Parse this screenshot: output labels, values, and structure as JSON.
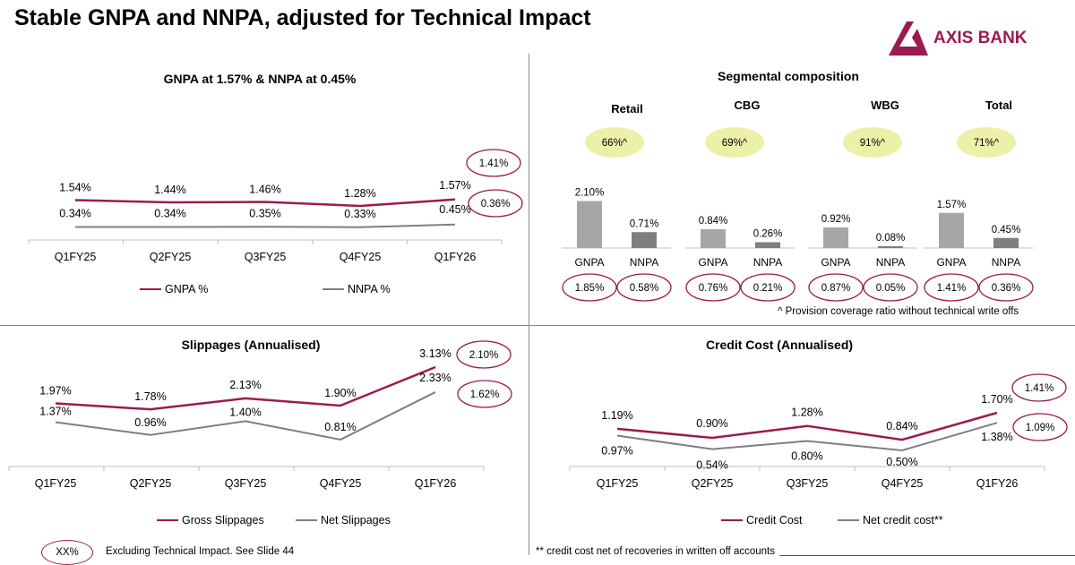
{
  "slide": {
    "title": "Stable GNPA and NNPA, adjusted for Technical Impact",
    "brand": "AXIS BANK"
  },
  "colors": {
    "primary": "#9b1b4e",
    "secondary": "#7f7f7f",
    "bar": "#a6a6a6",
    "bar_dark": "#7f7f7f",
    "pill": "#ecf0a9"
  },
  "chart_data": [
    {
      "type": "line",
      "title": "GNPA at 1.57% & NNPA at 0.45%",
      "categories": [
        "Q1FY25",
        "Q2FY25",
        "Q3FY25",
        "Q4FY25",
        "Q1FY26"
      ],
      "series": [
        {
          "name": "GNPA %",
          "values": [
            1.54,
            1.44,
            1.46,
            1.28,
            1.57
          ],
          "labels": [
            "1.54%",
            "1.44%",
            "1.46%",
            "1.28%",
            "1.57%"
          ]
        },
        {
          "name": "NNPA %",
          "values": [
            0.34,
            0.34,
            0.35,
            0.33,
            0.45
          ],
          "labels": [
            "0.34%",
            "0.34%",
            "0.35%",
            "0.33%",
            "0.45%"
          ]
        }
      ],
      "annotations": [
        "1.41%",
        "0.36%"
      ]
    },
    {
      "type": "bar",
      "title": "Segmental composition",
      "segments": [
        {
          "name": "Retail",
          "pcr": "66%^",
          "categories": [
            "GNPA",
            "NNPA"
          ],
          "values": [
            2.1,
            0.71
          ],
          "labels": [
            "2.10%",
            "0.71%"
          ],
          "excl": [
            "1.85%",
            "0.58%"
          ]
        },
        {
          "name": "CBG",
          "pcr": "69%^",
          "categories": [
            "GNPA",
            "NNPA"
          ],
          "values": [
            0.84,
            0.26
          ],
          "labels": [
            "0.84%",
            "0.26%"
          ],
          "excl": [
            "0.76%",
            "0.21%"
          ]
        },
        {
          "name": "WBG",
          "pcr": "91%^",
          "categories": [
            "GNPA",
            "NNPA"
          ],
          "values": [
            0.92,
            0.08
          ],
          "labels": [
            "0.92%",
            "0.08%"
          ],
          "excl": [
            "0.87%",
            "0.05%"
          ]
        },
        {
          "name": "Total",
          "pcr": "71%^",
          "categories": [
            "GNPA",
            "NNPA"
          ],
          "values": [
            1.57,
            0.45
          ],
          "labels": [
            "1.57%",
            "0.45%"
          ],
          "excl": [
            "1.41%",
            "0.36%"
          ]
        }
      ],
      "footnote": "^ Provision coverage ratio without technical write offs"
    },
    {
      "type": "line",
      "title": "Slippages (Annualised)",
      "categories": [
        "Q1FY25",
        "Q2FY25",
        "Q3FY25",
        "Q4FY25",
        "Q1FY26"
      ],
      "series": [
        {
          "name": "Gross Slippages",
          "values": [
            1.97,
            1.78,
            2.13,
            1.9,
            3.13
          ],
          "labels": [
            "1.97%",
            "1.78%",
            "2.13%",
            "1.90%",
            "3.13%"
          ]
        },
        {
          "name": "Net Slippages",
          "values": [
            1.37,
            0.96,
            1.4,
            0.81,
            2.33
          ],
          "labels": [
            "1.37%",
            "0.96%",
            "1.40%",
            "0.81%",
            "2.33%"
          ]
        }
      ],
      "annotations": [
        "2.10%",
        "1.62%"
      ]
    },
    {
      "type": "line",
      "title": "Credit Cost (Annualised)",
      "categories": [
        "Q1FY25",
        "Q2FY25",
        "Q3FY25",
        "Q4FY25",
        "Q1FY26"
      ],
      "series": [
        {
          "name": "Credit Cost",
          "values": [
            1.19,
            0.9,
            1.28,
            0.84,
            1.7
          ],
          "labels": [
            "1.19%",
            "0.90%",
            "1.28%",
            "0.84%",
            "1.70%"
          ]
        },
        {
          "name": "Net credit cost**",
          "values": [
            0.97,
            0.54,
            0.8,
            0.5,
            1.38
          ],
          "labels": [
            "0.97%",
            "0.54%",
            "0.80%",
            "0.50%",
            "1.38%"
          ]
        }
      ],
      "annotations": [
        "1.41%",
        "1.09%"
      ]
    }
  ],
  "notes": {
    "legend_oval": "XX%",
    "legend_text": "Excluding Technical Impact. See Slide 44",
    "credit_footnote": "** credit cost net of recoveries in written off accounts"
  }
}
